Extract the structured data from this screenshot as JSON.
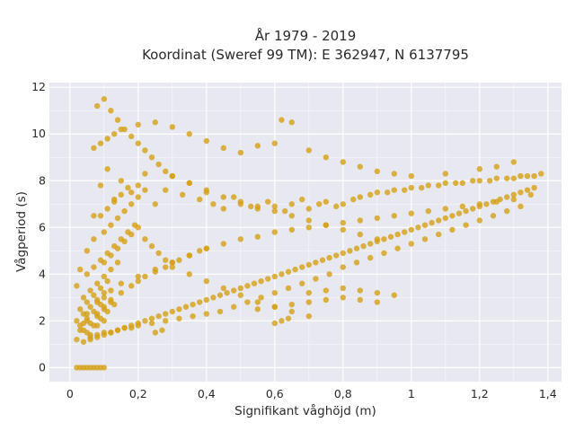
{
  "chart_data": {
    "type": "scatter",
    "title_line1": "År 1979 - 2019",
    "title_line2": "Koordinat (Sweref 99 TM): E 362947, N 6137795",
    "xlabel": "Signifikant våghöjd (m)",
    "ylabel": "Vågperiod (s)",
    "xlim": [
      -0.06,
      1.44
    ],
    "ylim": [
      -0.6,
      12.2
    ],
    "x_ticks": [
      0,
      0.2,
      0.4,
      0.6,
      0.8,
      1,
      1.2,
      1.4
    ],
    "x_tick_labels": [
      "0",
      "0,2",
      "0,4",
      "0,6",
      "0,8",
      "1",
      "1,2",
      "1,4"
    ],
    "y_ticks": [
      0,
      2,
      4,
      6,
      8,
      10,
      12
    ],
    "y_tick_labels": [
      "0",
      "2",
      "4",
      "6",
      "8",
      "10",
      "12"
    ],
    "grid": true,
    "legend": "none",
    "colors": {
      "marker": "#D4A017",
      "plot_background": "#E8E8F0",
      "grid": "#FFFFFF"
    },
    "series": [
      {
        "values_note_free": true,
        "x": [
          0.02,
          0.03,
          0.04,
          0.05,
          0.06,
          0.08,
          0.1,
          0.02,
          0.03,
          0.05,
          0.07,
          0.09,
          0.11,
          0.13,
          0.15,
          0.18,
          0.2,
          0.22,
          0.25,
          0.28,
          0.3,
          0.33,
          0.35,
          0.38,
          0.4,
          0.42,
          0.45,
          0.48,
          0.5,
          0.53,
          0.55,
          0.58,
          0.6,
          0.63,
          0.65,
          0.68,
          0.7,
          0.73,
          0.75,
          0.78,
          0.8,
          0.83,
          0.85,
          0.88,
          0.9,
          0.93,
          0.95,
          0.98,
          1.0,
          1.03,
          1.05,
          1.08,
          1.1,
          1.13,
          1.15,
          1.18,
          1.2,
          1.23,
          1.25,
          1.28,
          1.3,
          1.32,
          1.34,
          1.36,
          1.38,
          0.05,
          0.08,
          0.1,
          0.12,
          0.15,
          0.18,
          0.2,
          0.22,
          0.25,
          0.28,
          0.3,
          0.32,
          0.35,
          0.38,
          0.4,
          0.45,
          0.5,
          0.55,
          0.6,
          0.65,
          0.7,
          0.75,
          0.8,
          0.85,
          0.9,
          0.95,
          1.0,
          1.05,
          1.1,
          1.15,
          1.2,
          1.25,
          1.3,
          1.35,
          0.06,
          0.08,
          0.1,
          0.12,
          0.14,
          0.16,
          0.18,
          0.2,
          0.24,
          0.28,
          0.32,
          0.36,
          0.4,
          0.44,
          0.48,
          0.52,
          0.56,
          0.6,
          0.64,
          0.68,
          0.72,
          0.76,
          0.8,
          0.84,
          0.88,
          0.92,
          0.96,
          1.0,
          1.04,
          1.08,
          1.12,
          1.16,
          1.2,
          1.24,
          1.28,
          1.32,
          0.07,
          0.09,
          0.11,
          0.13,
          0.15,
          0.2,
          0.25,
          0.3,
          0.35,
          0.4,
          0.45,
          0.5,
          0.55,
          0.6,
          0.62,
          0.65,
          0.7,
          0.75,
          0.8,
          0.85,
          0.9,
          0.95,
          1.0,
          1.1,
          1.2,
          1.25,
          1.3,
          0.08,
          0.1,
          0.12,
          0.14,
          0.16,
          0.18,
          0.2,
          0.22,
          0.24,
          0.26,
          0.28,
          0.3,
          0.35,
          0.4,
          0.45,
          0.5,
          0.55,
          0.6,
          0.65,
          0.7,
          0.75,
          0.8,
          0.85,
          0.9,
          0.1,
          0.12,
          0.14,
          0.16,
          0.18,
          0.2,
          0.22,
          0.24,
          0.26,
          0.28,
          0.3,
          0.35,
          0.4,
          0.45,
          0.5,
          0.55,
          0.6,
          0.65,
          0.7,
          0.08,
          0.1,
          0.12,
          0.15,
          0.2,
          0.25,
          0.3,
          0.35,
          0.4,
          0.09,
          0.11,
          0.13,
          0.15,
          0.17,
          0.07,
          0.1,
          0.12,
          0.14,
          0.16,
          0.18,
          0.2,
          0.22,
          0.05,
          0.07,
          0.09,
          0.11,
          0.13,
          0.15,
          0.17,
          0.19,
          0.04,
          0.06,
          0.08,
          0.1,
          0.12,
          0.14,
          0.03,
          0.05,
          0.07,
          0.09,
          0.11,
          0.02,
          0.04,
          0.06,
          0.08,
          0.1,
          0.03,
          0.05,
          0.07,
          0.09,
          0.04,
          0.06,
          0.08,
          0.1,
          0.12,
          0.05,
          0.07,
          0.09,
          0.11,
          0.13,
          0.04,
          0.06,
          0.08,
          0.1,
          0.12,
          0.14,
          0.16,
          0.18,
          0.2,
          0.22,
          0.24,
          0.26,
          0.28,
          0.3,
          0.32,
          0.34,
          0.36,
          0.38,
          0.4,
          0.42,
          0.44,
          0.46,
          0.48,
          0.5,
          0.52,
          0.54,
          0.56,
          0.58,
          0.6,
          0.62,
          0.64,
          0.66,
          0.68,
          0.7,
          0.72,
          0.74,
          0.76,
          0.78,
          0.8,
          0.82,
          0.84,
          0.86,
          0.88,
          0.9,
          0.92,
          0.94,
          0.96,
          0.98,
          1.0,
          1.02,
          1.04,
          1.06,
          1.08,
          1.1,
          1.12,
          1.14,
          1.16,
          1.18,
          1.2,
          1.22,
          1.24,
          1.26,
          1.28,
          1.3,
          1.32,
          1.34,
          1.36,
          0.55,
          0.6,
          0.65,
          0.7,
          0.75,
          0.8,
          0.85,
          0.9,
          0.7,
          0.75,
          0.8,
          0.85,
          0.9,
          0.95,
          0.25,
          0.27,
          0.6,
          0.62,
          0.64,
          0.02,
          0.03,
          0.04,
          0.05,
          0.06,
          0.07,
          0.08,
          0.09,
          0.1
        ],
        "y": [
          1.2,
          1.6,
          1.9,
          2.3,
          1.4,
          1.8,
          2.0,
          3.5,
          4.2,
          5.0,
          6.5,
          7.8,
          8.5,
          7.2,
          8.0,
          7.5,
          7.8,
          8.3,
          7.0,
          7.6,
          8.2,
          7.4,
          7.9,
          7.2,
          7.5,
          7.0,
          6.8,
          7.3,
          7.0,
          6.9,
          6.8,
          7.1,
          6.9,
          6.7,
          7.0,
          7.2,
          6.8,
          7.0,
          7.1,
          6.9,
          7.0,
          7.2,
          7.3,
          7.4,
          7.5,
          7.5,
          7.6,
          7.6,
          7.7,
          7.7,
          7.8,
          7.8,
          7.9,
          7.9,
          7.9,
          8.0,
          8.0,
          8.0,
          8.1,
          8.1,
          8.1,
          8.2,
          8.2,
          8.2,
          8.3,
          2.0,
          2.3,
          2.6,
          2.9,
          3.2,
          3.5,
          3.7,
          3.9,
          4.1,
          4.3,
          4.5,
          4.6,
          4.8,
          5.0,
          5.1,
          5.3,
          5.5,
          5.6,
          5.8,
          5.9,
          6.0,
          6.1,
          6.2,
          6.3,
          6.4,
          6.5,
          6.6,
          6.7,
          6.8,
          6.9,
          7.0,
          7.1,
          7.2,
          7.4,
          1.3,
          1.4,
          1.5,
          1.5,
          1.6,
          1.7,
          1.7,
          1.8,
          1.9,
          2.0,
          2.1,
          2.2,
          2.3,
          2.4,
          2.6,
          2.8,
          3.0,
          3.2,
          3.4,
          3.6,
          3.8,
          4.0,
          4.3,
          4.5,
          4.7,
          4.9,
          5.1,
          5.3,
          5.5,
          5.7,
          5.9,
          6.1,
          6.3,
          6.5,
          6.7,
          6.9,
          9.4,
          9.6,
          9.8,
          10.0,
          10.2,
          10.4,
          10.5,
          10.3,
          10.0,
          9.7,
          9.4,
          9.2,
          9.5,
          9.6,
          10.6,
          10.5,
          9.3,
          9.0,
          8.8,
          8.6,
          8.4,
          8.3,
          8.2,
          8.3,
          8.5,
          8.6,
          8.8,
          11.2,
          11.5,
          11.0,
          10.6,
          10.2,
          9.9,
          9.6,
          9.3,
          9.0,
          8.7,
          8.4,
          8.2,
          7.9,
          7.6,
          7.3,
          7.1,
          6.9,
          6.7,
          6.5,
          6.3,
          6.1,
          5.9,
          5.7,
          5.5,
          4.5,
          4.8,
          5.1,
          5.4,
          5.7,
          6.0,
          5.5,
          5.2,
          4.9,
          4.6,
          4.3,
          4.0,
          3.7,
          3.4,
          3.1,
          2.8,
          2.6,
          2.4,
          2.2,
          2.8,
          3.0,
          3.3,
          3.6,
          3.9,
          4.2,
          4.5,
          4.8,
          5.1,
          6.5,
          6.8,
          7.1,
          7.4,
          7.7,
          5.5,
          5.8,
          6.1,
          6.4,
          6.7,
          7.0,
          7.3,
          7.6,
          4.0,
          4.3,
          4.6,
          4.9,
          5.2,
          5.5,
          5.8,
          6.1,
          3.0,
          3.3,
          3.6,
          3.9,
          4.2,
          4.5,
          2.5,
          2.8,
          3.1,
          3.4,
          3.7,
          2.0,
          2.3,
          2.6,
          2.9,
          3.2,
          1.8,
          2.1,
          2.4,
          2.7,
          1.6,
          1.9,
          2.2,
          2.5,
          2.8,
          1.5,
          1.8,
          2.1,
          2.4,
          2.7,
          1.1,
          1.2,
          1.3,
          1.4,
          1.5,
          1.6,
          1.7,
          1.8,
          1.9,
          2.0,
          2.1,
          2.2,
          2.3,
          2.4,
          2.5,
          2.6,
          2.7,
          2.8,
          2.9,
          3.0,
          3.1,
          3.2,
          3.3,
          3.4,
          3.5,
          3.6,
          3.7,
          3.8,
          3.9,
          4.0,
          4.1,
          4.2,
          4.3,
          4.4,
          4.5,
          4.6,
          4.7,
          4.8,
          4.9,
          5.0,
          5.1,
          5.2,
          5.3,
          5.4,
          5.5,
          5.6,
          5.7,
          5.8,
          5.9,
          6.0,
          6.1,
          6.2,
          6.3,
          6.4,
          6.5,
          6.6,
          6.7,
          6.8,
          6.9,
          7.0,
          7.1,
          7.2,
          7.3,
          7.4,
          7.5,
          7.6,
          7.7,
          2.5,
          2.6,
          2.7,
          2.8,
          2.9,
          3.0,
          2.9,
          2.8,
          3.2,
          3.3,
          3.4,
          3.3,
          3.2,
          3.1,
          1.5,
          1.6,
          1.9,
          2.0,
          2.1,
          0,
          0,
          0,
          0,
          0,
          0,
          0,
          0,
          0
        ]
      }
    ]
  }
}
